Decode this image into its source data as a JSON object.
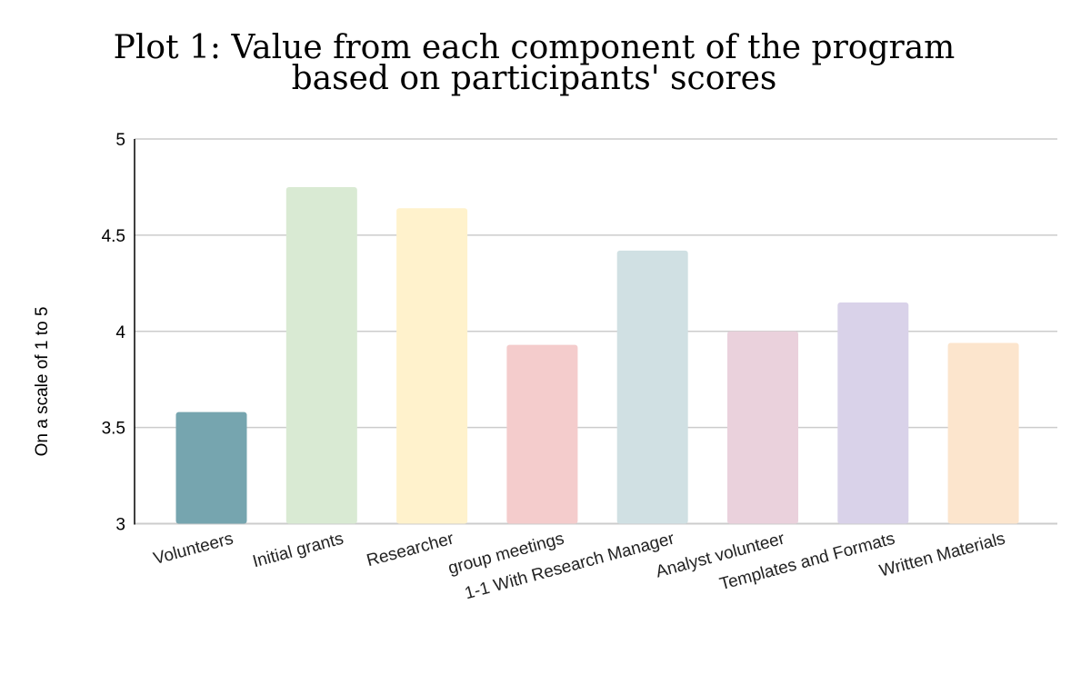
{
  "chart_data": {
    "type": "bar",
    "title_line1": "Plot 1:  Value from each component of the program",
    "title_line2": "based on participants' scores",
    "xlabel": "",
    "ylabel": "On a scale of 1 to 5",
    "ylim": [
      3,
      5
    ],
    "yticks": [
      "3",
      "3.5",
      "4",
      "4.5",
      "5"
    ],
    "grid": true,
    "categories": [
      "Volunteers",
      "Initial grants",
      "Researcher",
      "group meetings",
      "1-1 With Research Manager",
      "Analyst volunteer",
      "Templates and Formats",
      "Written Materials"
    ],
    "values": [
      3.58,
      4.75,
      4.64,
      3.93,
      4.42,
      4.0,
      4.15,
      3.94
    ],
    "colors": [
      "#76a5af",
      "#d9ead3",
      "#fff2cc",
      "#f4cccc",
      "#d0e0e3",
      "#ead1dc",
      "#d9d2e9",
      "#fce5cd"
    ]
  }
}
